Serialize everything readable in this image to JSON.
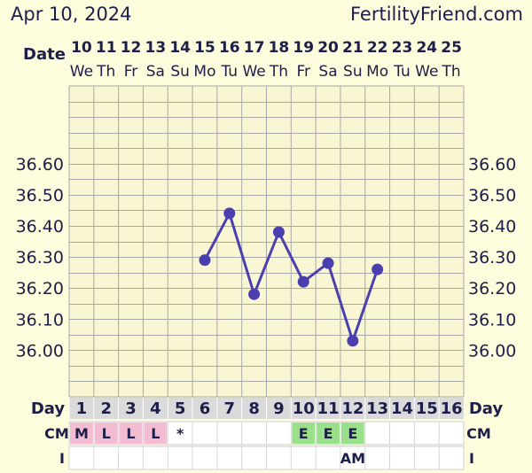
{
  "header": {
    "date": "Apr 10, 2024",
    "site": "FertilityFriend.com"
  },
  "labels": {
    "date_row": "Date",
    "day_row": "Day",
    "cm_row": "CM",
    "i_row": "I"
  },
  "colors": {
    "background": "#fdfcdc",
    "chart_area": "#f9f6d3",
    "grid": "#a8a8a8",
    "line": "#4b3fb0",
    "day_bg": "#dadada",
    "cm_pink": "#f4bcd2",
    "cm_green": "#9ae08a",
    "text": "#1e1e4a"
  },
  "chart_data": {
    "type": "line",
    "dates": [
      "10",
      "11",
      "12",
      "13",
      "14",
      "15",
      "16",
      "17",
      "18",
      "19",
      "20",
      "21",
      "22",
      "23",
      "24",
      "25"
    ],
    "weekdays": [
      "We",
      "Th",
      "Fr",
      "Sa",
      "Su",
      "Mo",
      "Tu",
      "We",
      "Th",
      "Fr",
      "Sa",
      "Su",
      "Mo",
      "Tu",
      "We",
      "Th"
    ],
    "days": [
      1,
      2,
      3,
      4,
      5,
      6,
      7,
      8,
      9,
      10,
      11,
      12,
      13,
      14,
      15,
      16
    ],
    "y_ticks": [
      "36.60",
      "36.50",
      "36.40",
      "36.30",
      "36.20",
      "36.10",
      "36.00"
    ],
    "ylim": [
      35.85,
      36.85
    ],
    "series": [
      {
        "points": [
          {
            "day": 6,
            "value": 36.29
          },
          {
            "day": 7,
            "value": 36.44
          },
          {
            "day": 8,
            "value": 36.18
          },
          {
            "day": 9,
            "value": 36.38
          },
          {
            "day": 10,
            "value": 36.22
          },
          {
            "day": 11,
            "value": 36.28
          },
          {
            "day": 12,
            "value": 36.03
          },
          {
            "day": 13,
            "value": 36.26
          }
        ]
      }
    ],
    "cm": [
      "M",
      "L",
      "L",
      "L",
      "*",
      "",
      "",
      "",
      "",
      "E",
      "E",
      "E",
      "",
      "",
      "",
      ""
    ],
    "intercourse": [
      "",
      "",
      "",
      "",
      "",
      "",
      "",
      "",
      "",
      "",
      "",
      "AM",
      "",
      "",
      "",
      ""
    ],
    "grid": true
  }
}
